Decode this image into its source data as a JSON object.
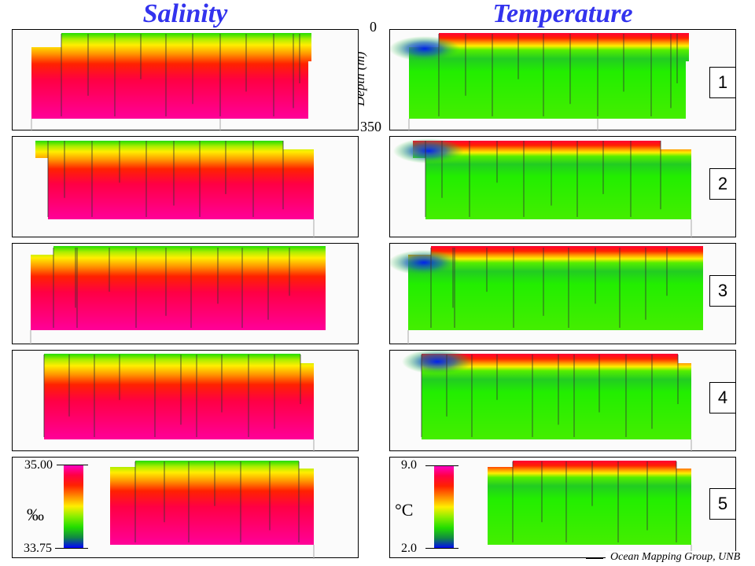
{
  "titles": {
    "salinity": "Salinity",
    "temperature": "Temperature"
  },
  "depth_axis": {
    "label": "Depth (m)",
    "top": "0",
    "bottom": "350"
  },
  "panel_numbers": [
    "1",
    "2",
    "3",
    "4",
    "5"
  ],
  "salinity_scale": {
    "max": "35.00",
    "min": "33.75",
    "unit": "‰"
  },
  "temperature_scale": {
    "max": "9.0",
    "min": "2.0",
    "unit": "°C"
  },
  "colormap": [
    "#ff00cc",
    "#ff0044",
    "#ff2200",
    "#ff8800",
    "#ffee00",
    "#88ee00",
    "#22dd00",
    "#118844",
    "#0000ff"
  ],
  "credit": "Ocean Mapping Group, UNB",
  "sections": [
    {
      "id": 1,
      "casts": 11
    },
    {
      "id": 2,
      "casts": 11
    },
    {
      "id": 3,
      "casts": 11
    },
    {
      "id": 4,
      "casts": 10
    },
    {
      "id": 5,
      "casts": 7
    }
  ]
}
